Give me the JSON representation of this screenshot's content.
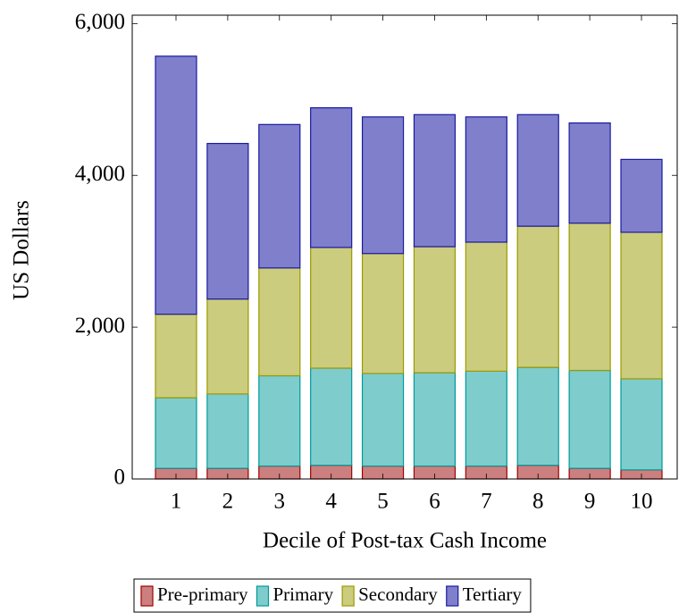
{
  "chart_data": {
    "type": "stacked-bar",
    "x_label": "Decile of Post-tax Cash Income",
    "y_label": "US Dollars",
    "categories": [
      "1",
      "2",
      "3",
      "4",
      "5",
      "6",
      "7",
      "8",
      "9",
      "10"
    ],
    "series": [
      {
        "name": "Pre-primary",
        "color": "#cc7f7f",
        "stroke": "#a00000",
        "values": [
          140,
          140,
          170,
          180,
          170,
          170,
          170,
          180,
          140,
          120
        ]
      },
      {
        "name": "Primary",
        "color": "#7fcccc",
        "stroke": "#009a9a",
        "values": [
          930,
          980,
          1190,
          1280,
          1220,
          1230,
          1250,
          1290,
          1290,
          1200
        ]
      },
      {
        "name": "Secondary",
        "color": "#cccc7f",
        "stroke": "#9a9a00",
        "values": [
          1100,
          1250,
          1420,
          1590,
          1580,
          1660,
          1700,
          1860,
          1940,
          1930
        ]
      },
      {
        "name": "Tertiary",
        "color": "#7f7fcc",
        "stroke": "#1a1aa0",
        "values": [
          3400,
          2050,
          1890,
          1840,
          1800,
          1740,
          1650,
          1470,
          1320,
          960
        ]
      }
    ],
    "ylim": [
      0,
      6110
    ],
    "yticks": [
      0,
      {
        "value": 2000,
        "label": "2,000"
      },
      {
        "value": 4000,
        "label": "4,000"
      },
      {
        "value": 6000,
        "label": "6,000"
      }
    ],
    "legend": "bottom"
  }
}
